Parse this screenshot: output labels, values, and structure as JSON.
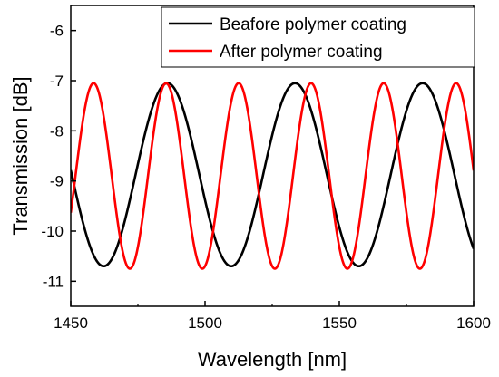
{
  "chart_data": {
    "type": "line",
    "title": "",
    "xlabel": "Wavelength [nm]",
    "ylabel": "Transmission [dB]",
    "xlim": [
      1450,
      1600
    ],
    "ylim": [
      -11.5,
      -5.5
    ],
    "xticks": [
      1450,
      1500,
      1550,
      1600
    ],
    "yticks": [
      -11,
      -10,
      -9,
      -8,
      -7,
      -6
    ],
    "grid": false,
    "legend_position": "top-right",
    "series": [
      {
        "name": "Beafore polymer coating",
        "color": "#000000",
        "period_nm": 47.5,
        "peak_wavelength_nm": 1486,
        "max_db": -7.05,
        "min_db": -10.7,
        "notch_wavelengths_nm": [
          1463,
          1510,
          1557
        ],
        "peak_wavelengths_nm": [
          1486,
          1533,
          1580
        ]
      },
      {
        "name": "After polymer coating",
        "color": "#ff0000",
        "period_nm": 27,
        "peak_wavelength_nm": 1485.5,
        "max_db": -7.05,
        "min_db": -10.75,
        "notch_wavelengths_nm": [
          1472,
          1499,
          1526,
          1553,
          1580
        ],
        "peak_wavelengths_nm": [
          1458.5,
          1485.5,
          1512.5,
          1539.5,
          1566.5,
          1593.5
        ]
      }
    ]
  }
}
